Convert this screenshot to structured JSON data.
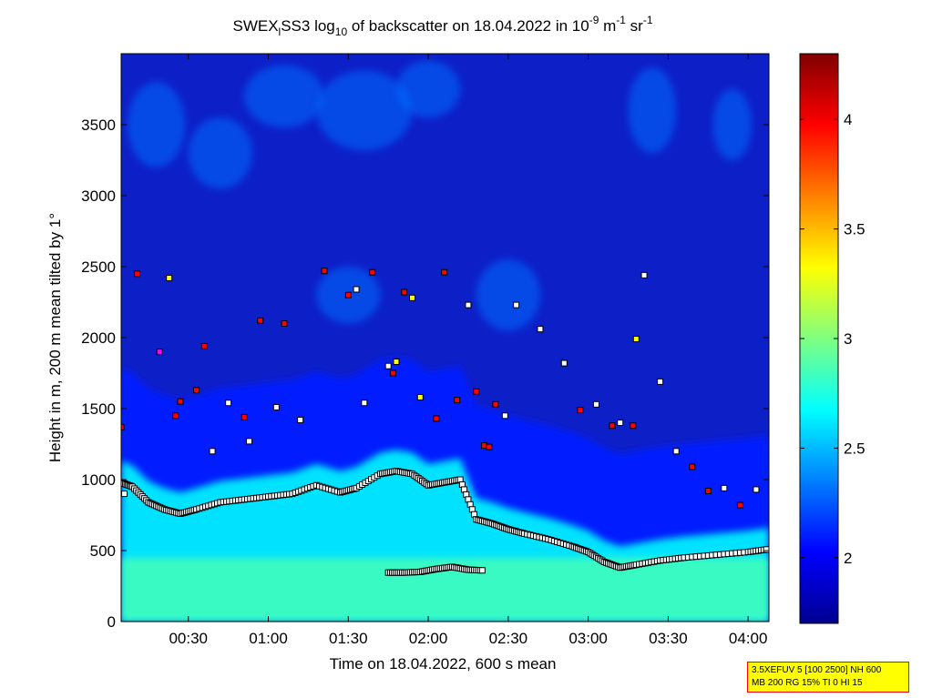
{
  "chart_data": {
    "type": "heatmap",
    "title_parts": {
      "a": "SWEX",
      "sub1": "l",
      "b": "SS3 log",
      "sub2": "10",
      "c": " of backscatter on 18.04.2022 in 10",
      "sup1": "-9",
      "d": " m",
      "sup2": "-1",
      "e": " sr",
      "sup3": "-1"
    },
    "xlabel": "Time on 18.04.2022, 600 s mean",
    "ylabel": "Height in m, 200 m mean tilted by 1°",
    "x_units": "hours",
    "xlim": [
      0.08,
      4.13
    ],
    "x_ticks": [
      0.5,
      1.0,
      1.5,
      2.0,
      2.5,
      3.0,
      3.5,
      4.0
    ],
    "x_tick_labels": [
      "00:30",
      "01:00",
      "01:30",
      "02:00",
      "02:30",
      "03:00",
      "03:30",
      "04:00"
    ],
    "ylim": [
      0,
      4000
    ],
    "y_ticks": [
      0,
      500,
      1000,
      1500,
      2000,
      2500,
      3000,
      3500
    ],
    "y_tick_labels": [
      "0",
      "500",
      "1000",
      "1500",
      "2000",
      "2500",
      "3000",
      "3500"
    ],
    "colorbar": {
      "range": [
        1.7,
        4.3
      ],
      "ticks": [
        2,
        2.5,
        3,
        3.5,
        4
      ],
      "tick_labels": [
        "2",
        "2.5",
        "3",
        "3.5",
        "4"
      ],
      "colormap": "jet"
    },
    "background_field": {
      "description_levels": "log10 backscatter, approx.",
      "near_surface_value": 2.85,
      "boundary_layer_value": 2.6,
      "lower_free_troposphere_value": 2.1,
      "upper_background_value": 1.8
    },
    "boundary_layer_top": {
      "x": [
        0.08,
        0.15,
        0.25,
        0.35,
        0.45,
        0.55,
        0.7,
        0.85,
        1.0,
        1.15,
        1.3,
        1.45,
        1.55,
        1.7,
        1.8,
        1.9,
        2.0,
        2.1,
        2.2,
        2.3,
        2.4,
        2.5,
        2.6,
        2.75,
        2.9,
        3.0,
        3.1,
        3.2,
        3.3,
        3.45,
        3.6,
        3.8,
        4.0,
        4.13
      ],
      "y": [
        980,
        950,
        840,
        790,
        760,
        790,
        840,
        860,
        880,
        900,
        960,
        910,
        940,
        1040,
        1060,
        1040,
        960,
        980,
        1000,
        720,
        690,
        650,
        620,
        580,
        530,
        490,
        420,
        380,
        400,
        430,
        450,
        470,
        490,
        510
      ]
    },
    "lower_layer": {
      "x": [
        1.75,
        1.85,
        1.95,
        2.05,
        2.15,
        2.25,
        2.35
      ],
      "y": [
        345,
        345,
        350,
        370,
        385,
        365,
        360
      ]
    },
    "cloud_markers": {
      "x": [
        0.08,
        0.1,
        0.18,
        0.32,
        0.38,
        0.42,
        0.45,
        0.55,
        0.6,
        0.65,
        0.75,
        0.85,
        0.88,
        0.95,
        1.05,
        1.1,
        1.2,
        1.35,
        1.5,
        1.55,
        1.6,
        1.65,
        1.75,
        1.78,
        1.8,
        1.85,
        1.9,
        1.95,
        2.05,
        2.1,
        2.18,
        2.25,
        2.3,
        2.35,
        2.38,
        2.42,
        2.48,
        2.55,
        2.7,
        2.85,
        2.95,
        3.05,
        3.15,
        3.2,
        3.28,
        3.3,
        3.35,
        3.45,
        3.55,
        3.65,
        3.75,
        3.85,
        3.95,
        4.05
      ],
      "y": [
        1370,
        900,
        2450,
        1900,
        2420,
        1450,
        1550,
        1630,
        1940,
        1200,
        1540,
        1440,
        1270,
        2120,
        1510,
        2100,
        1420,
        2470,
        2300,
        2340,
        1540,
        2460,
        1800,
        1750,
        1830,
        2320,
        2280,
        1580,
        1430,
        2460,
        1560,
        2230,
        1620,
        1240,
        1230,
        1530,
        1450,
        2230,
        2060,
        1820,
        1490,
        1530,
        1380,
        1400,
        1380,
        1990,
        2440,
        1690,
        1200,
        1090,
        920,
        940,
        820,
        930
      ],
      "colors": [
        "#ff0000",
        "#ffffff",
        "#ff0000",
        "#ff00ff",
        "#ffff00",
        "#ff0000",
        "#ff0000",
        "#ff0000",
        "#ff0000",
        "#ffffff",
        "#ffffff",
        "#ff0000",
        "#ffffff",
        "#ff0000",
        "#ffffff",
        "#ff0000",
        "#ffffff",
        "#ff0000",
        "#ff0000",
        "#ffffff",
        "#ffffff",
        "#ff0000",
        "#ffffff",
        "#ff0000",
        "#ffff00",
        "#ff0000",
        "#ffff00",
        "#ffff00",
        "#ff0000",
        "#ff0000",
        "#ff0000",
        "#ffffff",
        "#ff0000",
        "#ff0000",
        "#ff0000",
        "#ff0000",
        "#ffffff",
        "#ffffff",
        "#ffffff",
        "#ffffff",
        "#ff0000",
        "#ffffff",
        "#ff0000",
        "#ffffff",
        "#ff0000",
        "#ffff00",
        "#ffffff",
        "#ffffff",
        "#ffffff",
        "#ff0000",
        "#ff0000",
        "#ffffff",
        "#ff0000",
        "#ffffff"
      ]
    }
  },
  "info_box": {
    "line1": "3.5XEFUV 5 [100 2500] NH 600",
    "line2": "MB 200 RG 15% TI 0 HI 15"
  }
}
